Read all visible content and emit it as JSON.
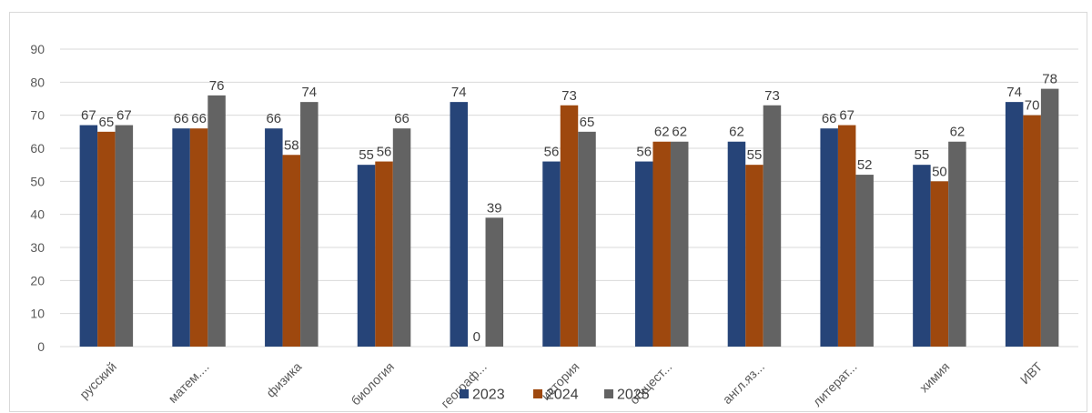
{
  "chart_data": {
    "type": "bar",
    "categories": [
      "русский",
      "матем....",
      "физика",
      "биология",
      "географ...",
      "история",
      "общест...",
      "англ.яз...",
      "литерат...",
      "химия",
      "ИВТ"
    ],
    "series": [
      {
        "name": "2023",
        "color": "#264478",
        "values": [
          67,
          66,
          66,
          55,
          74,
          56,
          56,
          62,
          66,
          55,
          74
        ]
      },
      {
        "name": "2024",
        "color": "#9E480E",
        "values": [
          65,
          66,
          58,
          56,
          0,
          73,
          62,
          55,
          67,
          50,
          70
        ]
      },
      {
        "name": "2025",
        "color": "#636363",
        "values": [
          67,
          76,
          74,
          66,
          39,
          65,
          62,
          73,
          52,
          62,
          78
        ]
      }
    ],
    "y_ticks": [
      "0",
      "10",
      "20",
      "30",
      "40",
      "50",
      "60",
      "70",
      "80",
      "90"
    ],
    "ylim": [
      0,
      90
    ],
    "grid": true,
    "legend_position": "bottom",
    "title": "",
    "xlabel": "",
    "ylabel": ""
  }
}
